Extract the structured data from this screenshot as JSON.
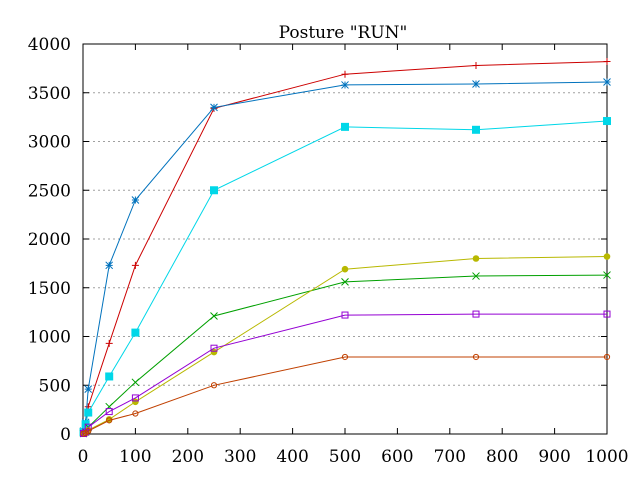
{
  "chart_data": {
    "type": "line",
    "title": "Posture \"RUN\"",
    "xlabel": "",
    "ylabel": "",
    "xlim": [
      0,
      1000
    ],
    "ylim": [
      0,
      4000
    ],
    "x_ticks": [
      0,
      100,
      200,
      300,
      400,
      500,
      600,
      700,
      800,
      900,
      1000
    ],
    "y_ticks": [
      0,
      500,
      1000,
      1500,
      2000,
      2500,
      3000,
      3500,
      4000
    ],
    "grid": "horizontal dotted",
    "legend": "none",
    "x": [
      1,
      5,
      10,
      50,
      100,
      250,
      500,
      750,
      1000
    ],
    "series": [
      {
        "color": "#cc0000",
        "marker": "plus",
        "values": [
          10,
          60,
          280,
          930,
          1730,
          3340,
          3690,
          3780,
          3820
        ]
      },
      {
        "color": "#0072bd",
        "marker": "star",
        "values": [
          30,
          120,
          460,
          1730,
          2400,
          3350,
          3580,
          3590,
          3610
        ]
      },
      {
        "color": "#00d7e8",
        "marker": "filled-square",
        "values": [
          20,
          100,
          220,
          590,
          1040,
          2500,
          3150,
          3120,
          3210
        ]
      },
      {
        "color": "#00a000",
        "marker": "cross",
        "values": [
          5,
          20,
          70,
          280,
          530,
          1210,
          1560,
          1620,
          1630
        ]
      },
      {
        "color": "#b8b800",
        "marker": "filled-circle",
        "values": [
          3,
          10,
          40,
          150,
          330,
          840,
          1690,
          1800,
          1820
        ]
      },
      {
        "color": "#9400d3",
        "marker": "open-square",
        "values": [
          5,
          20,
          70,
          230,
          370,
          880,
          1220,
          1230,
          1230
        ]
      },
      {
        "color": "#c04000",
        "marker": "open-circle",
        "values": [
          3,
          10,
          30,
          140,
          210,
          500,
          790,
          790,
          790
        ]
      }
    ]
  }
}
